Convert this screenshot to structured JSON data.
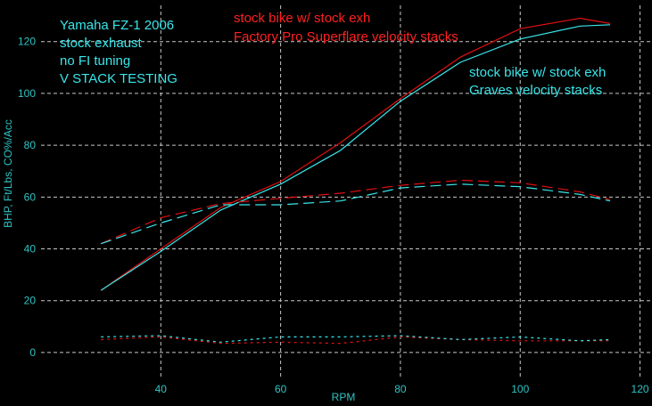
{
  "chart_data": {
    "type": "line",
    "title": "",
    "xlabel": "RPM",
    "ylabel": "BHP, Ft/Lbs, CO%/Acc",
    "xlim": [
      20,
      122
    ],
    "ylim": [
      -10,
      134
    ],
    "x_ticks": [
      40,
      60,
      80,
      100,
      120
    ],
    "y_ticks": [
      0,
      20,
      40,
      60,
      80,
      100,
      120
    ],
    "grid": true,
    "annotations": {
      "test_info": [
        "Yamaha FZ-1 2006",
        "stock exhaust",
        "no FI tuning",
        "V STACK TESTING"
      ],
      "red_run": [
        "stock bike w/ stock exh",
        "Factory Pro Superflare velocity stacks"
      ],
      "cyan_run": [
        "stock bike w/ stock exh",
        "Graves velocity stacks"
      ]
    },
    "colors": {
      "background": "#000000",
      "grid": "#c8c8c8",
      "axis_text": "#2ec4c4",
      "cyan": "#39e6ea",
      "red": "#e01010"
    },
    "series": [
      {
        "color": "#e01010",
        "style": "solid",
        "x": [
          30,
          40,
          50,
          60,
          70,
          80,
          90,
          100,
          110,
          115
        ],
        "values": [
          24,
          40,
          56,
          66,
          81,
          98,
          114,
          125,
          129,
          127
        ]
      },
      {
        "color": "#39e6ea",
        "style": "solid",
        "x": [
          30,
          40,
          50,
          60,
          70,
          80,
          90,
          100,
          110,
          115
        ],
        "values": [
          24,
          39,
          55,
          65,
          78,
          97,
          112,
          121,
          126,
          126.5
        ]
      },
      {
        "color": "#e01010",
        "style": "dashed",
        "x": [
          30,
          40,
          50,
          60,
          70,
          80,
          90,
          100,
          110,
          115
        ],
        "values": [
          42,
          52,
          57.5,
          59.5,
          61.5,
          64.5,
          66.5,
          65.5,
          62,
          59
        ]
      },
      {
        "color": "#39e6ea",
        "style": "dashed",
        "x": [
          30,
          40,
          50,
          60,
          70,
          80,
          90,
          100,
          110,
          115
        ],
        "values": [
          42,
          50,
          57,
          57,
          58.5,
          63.5,
          65,
          64,
          61,
          58.5
        ]
      },
      {
        "color": "#e01010",
        "style": "dotted",
        "x": [
          30,
          40,
          50,
          60,
          70,
          80,
          90,
          100,
          110,
          115
        ],
        "values": [
          5,
          6,
          3.5,
          4,
          3.5,
          6,
          5,
          4.5,
          4.5,
          4.5
        ]
      },
      {
        "color": "#39e6ea",
        "style": "dotted",
        "x": [
          30,
          40,
          50,
          60,
          70,
          80,
          90,
          100,
          110,
          115
        ],
        "values": [
          6,
          6.5,
          4,
          6,
          6,
          6.5,
          5,
          6,
          4.5,
          5
        ]
      }
    ]
  }
}
